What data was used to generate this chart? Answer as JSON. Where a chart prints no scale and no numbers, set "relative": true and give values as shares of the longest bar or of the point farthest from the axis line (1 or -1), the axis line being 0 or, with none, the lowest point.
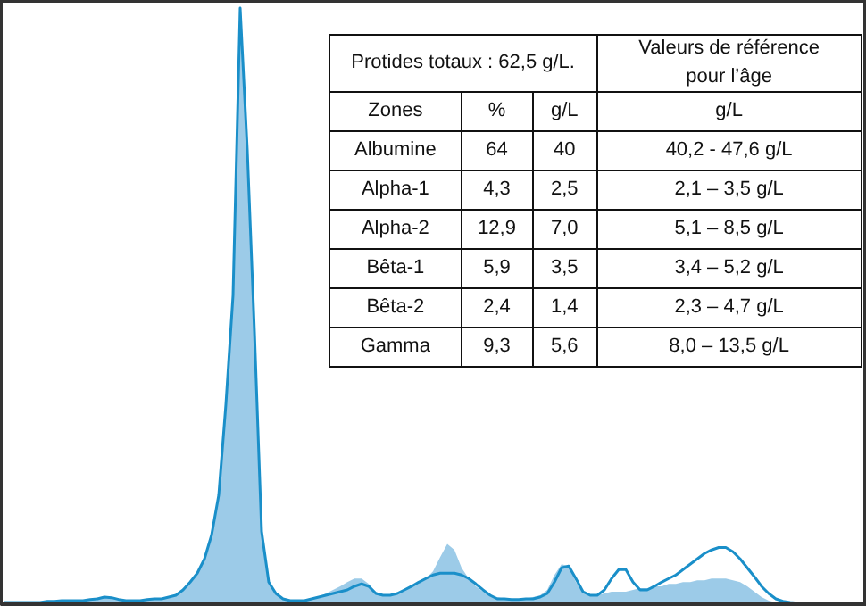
{
  "chart_data": [
    {
      "type": "line",
      "relative": true,
      "categories": [
        null,
        null,
        null,
        null,
        null,
        null,
        null,
        null,
        null,
        null,
        null,
        null,
        null,
        null,
        null,
        null,
        null,
        null,
        null,
        null,
        null,
        null,
        null,
        null,
        null,
        null,
        null,
        null,
        null,
        null,
        null,
        null,
        null,
        null,
        null,
        null,
        null,
        null,
        null,
        null,
        null,
        null,
        null,
        null,
        null,
        null,
        null,
        null,
        null,
        null,
        null,
        null,
        null,
        null,
        null,
        null,
        null,
        null,
        null,
        null,
        null,
        null,
        null,
        null,
        null,
        null,
        null,
        null,
        null,
        null,
        null,
        null,
        null,
        null,
        null,
        null,
        null,
        null,
        null,
        null,
        null,
        null,
        null,
        null,
        null,
        null,
        null,
        null,
        null,
        null,
        null,
        null,
        null,
        null,
        null,
        null,
        null,
        null,
        null,
        null,
        null,
        null,
        null,
        null,
        null,
        null,
        null,
        null,
        null,
        null,
        null,
        null,
        null,
        null,
        null,
        null,
        null,
        null,
        null,
        null,
        null
      ],
      "series": [
        {
          "type": "area",
          "color": "#9ccbe8",
          "values": [
            0.003,
            0.003,
            0.003,
            0.003,
            0.003,
            0.003,
            0.005,
            0.005,
            0.006,
            0.006,
            0.006,
            0.006,
            0.008,
            0.009,
            0.012,
            0.011,
            0.008,
            0.006,
            0.006,
            0.006,
            0.008,
            0.009,
            0.009,
            0.012,
            0.015,
            0.024,
            0.037,
            0.052,
            0.076,
            0.116,
            0.183,
            0.335,
            0.518,
            0.99,
            0.762,
            0.457,
            0.122,
            0.037,
            0.018,
            0.009,
            0.006,
            0.006,
            0.006,
            0.009,
            0.012,
            0.018,
            0.024,
            0.03,
            0.037,
            0.043,
            0.043,
            0.034,
            0.021,
            0.015,
            0.015,
            0.018,
            0.024,
            0.03,
            0.037,
            0.043,
            0.055,
            0.079,
            0.101,
            0.091,
            0.061,
            0.043,
            0.03,
            0.021,
            0.015,
            0.012,
            0.009,
            0.009,
            0.009,
            0.009,
            0.012,
            0.015,
            0.024,
            0.049,
            0.067,
            0.064,
            0.037,
            0.021,
            0.015,
            0.015,
            0.018,
            0.021,
            0.021,
            0.021,
            0.024,
            0.027,
            0.027,
            0.03,
            0.03,
            0.034,
            0.034,
            0.037,
            0.037,
            0.04,
            0.04,
            0.043,
            0.043,
            0.043,
            0.04,
            0.037,
            0.03,
            0.021,
            0.012,
            0.006,
            0.003,
            0.002,
            0.002,
            0.002,
            0.002,
            0.002,
            0.002,
            0.002,
            0.002,
            0.002,
            0.002,
            0.002,
            0.002
          ]
        },
        {
          "type": "line",
          "color": "#1a8fc9",
          "values": [
            0.003,
            0.003,
            0.003,
            0.003,
            0.003,
            0.003,
            0.005,
            0.005,
            0.006,
            0.006,
            0.006,
            0.006,
            0.008,
            0.009,
            0.012,
            0.011,
            0.008,
            0.006,
            0.006,
            0.006,
            0.008,
            0.009,
            0.009,
            0.012,
            0.015,
            0.024,
            0.037,
            0.052,
            0.076,
            0.116,
            0.183,
            0.335,
            0.518,
            1,
            0.762,
            0.457,
            0.122,
            0.037,
            0.018,
            0.009,
            0.006,
            0.006,
            0.006,
            0.009,
            0.012,
            0.015,
            0.018,
            0.021,
            0.024,
            0.03,
            0.034,
            0.03,
            0.018,
            0.015,
            0.015,
            0.018,
            0.024,
            0.03,
            0.037,
            0.043,
            0.049,
            0.052,
            0.052,
            0.052,
            0.049,
            0.043,
            0.034,
            0.024,
            0.015,
            0.009,
            0.009,
            0.008,
            0.008,
            0.009,
            0.009,
            0.012,
            0.018,
            0.037,
            0.061,
            0.064,
            0.043,
            0.021,
            0.015,
            0.015,
            0.024,
            0.043,
            0.058,
            0.058,
            0.037,
            0.024,
            0.024,
            0.03,
            0.037,
            0.043,
            0.049,
            0.058,
            0.067,
            0.076,
            0.085,
            0.091,
            0.095,
            0.095,
            0.088,
            0.076,
            0.061,
            0.046,
            0.03,
            0.018,
            0.009,
            0.005,
            0.003,
            0.002,
            0.002,
            0.002,
            0.002,
            0.002,
            0.002,
            0.002,
            0.002,
            0.002,
            0.002
          ]
        }
      ]
    },
    {
      "type": "other",
      "title": "Protides totaux : 62,5 g/L.",
      "subtitle": "Valeurs de référence\npour l’âge",
      "categories": [
        "Zones",
        "%",
        "g/L",
        "g/L"
      ],
      "y_categories": [
        "Albumine",
        "Alpha-1",
        "Alpha-2",
        "Bêta-1",
        "Bêta-2",
        "Gamma"
      ],
      "annotations": [
        "64",
        "40",
        "40,2 - 47,6 g/L",
        "4,3",
        "2,5",
        "2,1 – 3,5 g/L",
        "12,9",
        "7,0",
        "5,1 – 8,5 g/L",
        "5,9",
        "3,5",
        "3,4 – 5,2 g/L",
        "2,4",
        "1,4",
        "2,3 – 4,7 g/L",
        "9,3",
        "5,6",
        "8,0 – 13,5 g/L"
      ]
    }
  ]
}
